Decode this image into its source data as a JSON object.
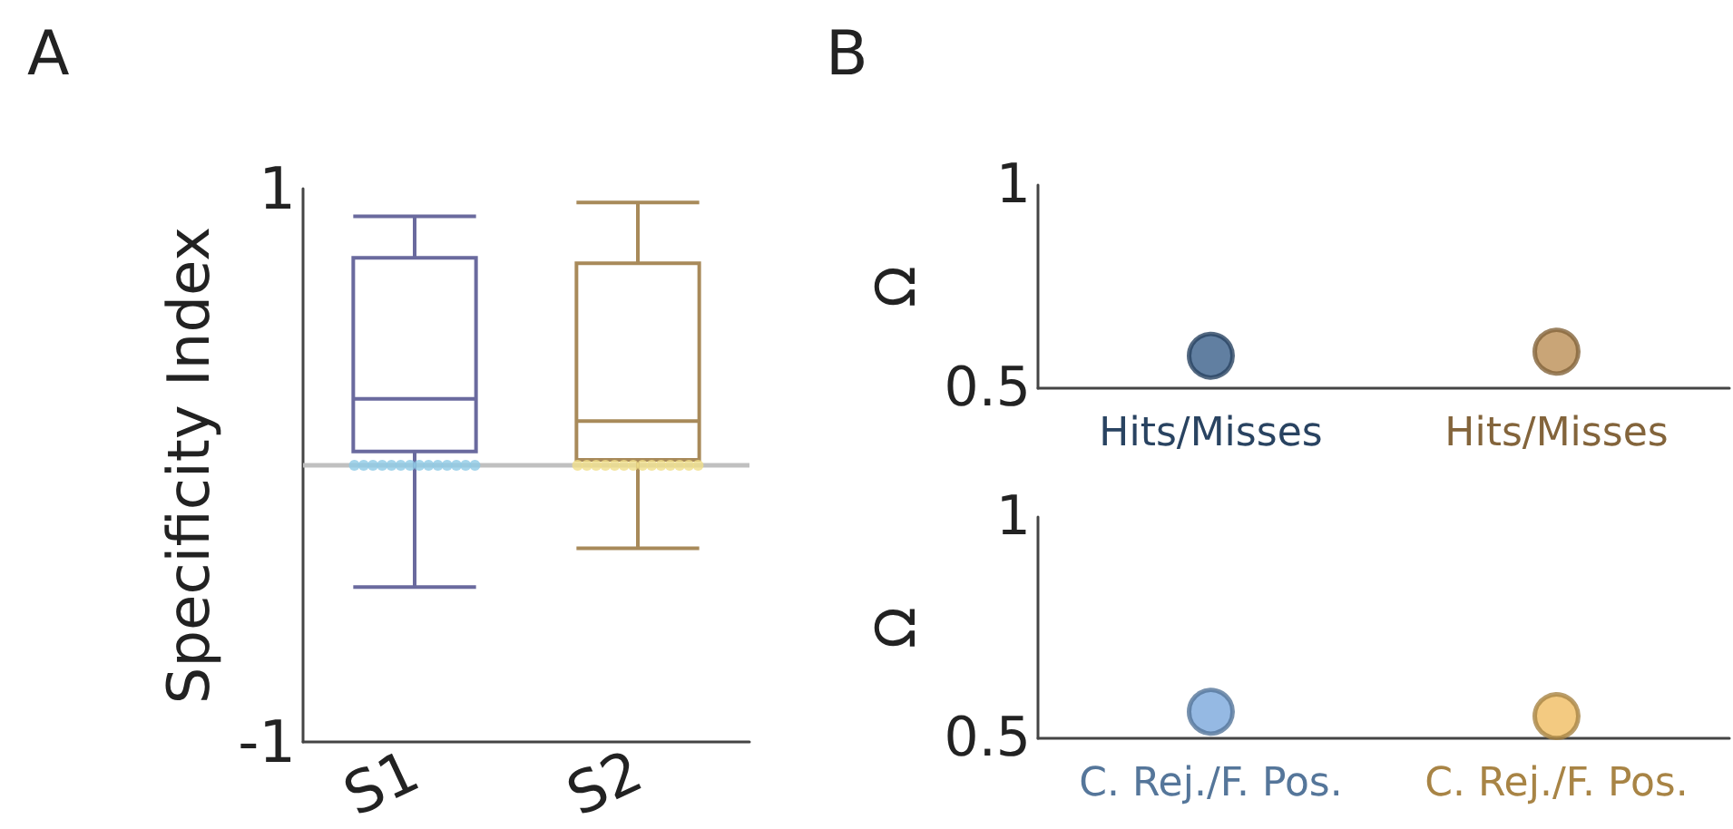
{
  "chart_data": [
    {
      "type": "box",
      "title": "A",
      "ylabel": "Specificity Index",
      "categories": [
        "S1",
        "S2"
      ],
      "ylim": [
        -1,
        1
      ],
      "yticks": [
        -1,
        1
      ],
      "ref_lines": [
        {
          "axis": "y",
          "value": 0,
          "color": "#c0c0c0"
        }
      ],
      "series": [
        {
          "colors": [
            "#6a6a9e",
            "#a88a5a"
          ],
          "boxes": [
            {
              "low": -0.44,
              "q1": 0.05,
              "median": 0.24,
              "q3": 0.75,
              "high": 0.9
            },
            {
              "low": -0.3,
              "q1": 0.02,
              "median": 0.16,
              "q3": 0.73,
              "high": 0.95
            }
          ]
        },
        {
          "type": "scatter",
          "color": "#8ecae6",
          "x": [
            "S1",
            "S1",
            "S1",
            "S1",
            "S1",
            "S1",
            "S1",
            "S1",
            "S1",
            "S1",
            "S1",
            "S1",
            "S1",
            "S1"
          ],
          "values": [
            0,
            0,
            0,
            0,
            0,
            0,
            0,
            0,
            0,
            0,
            0,
            0,
            0,
            0
          ]
        },
        {
          "type": "scatter",
          "color": "#f0de8a",
          "x": [
            "S2",
            "S2",
            "S2",
            "S2",
            "S2",
            "S2",
            "S2",
            "S2",
            "S2",
            "S2",
            "S2",
            "S2",
            "S2",
            "S2"
          ],
          "values": [
            0,
            0,
            0,
            0,
            0,
            0,
            0,
            0,
            0,
            0,
            0,
            0,
            0,
            0
          ]
        }
      ]
    },
    {
      "type": "scatter",
      "title": "B",
      "ylabel": "Ω",
      "categories": [
        "Hits/Misses",
        "Hits/Misses"
      ],
      "values": [
        0.58,
        0.59
      ],
      "colors": [
        "#3a5f8a",
        "#bb8f55"
      ],
      "ylim": [
        0.5,
        1
      ],
      "yticks": [
        0.5,
        1
      ],
      "marker": "circle"
    },
    {
      "type": "scatter",
      "ylabel": "Ω",
      "categories": [
        "C. Rej./F. Pos.",
        "C. Rej./F. Pos."
      ],
      "values": [
        0.56,
        0.55
      ],
      "colors": [
        "#7aa8dc",
        "#f0bd62"
      ],
      "ylim": [
        0.5,
        1
      ],
      "yticks": [
        0.5,
        1
      ],
      "marker": "circle"
    }
  ]
}
